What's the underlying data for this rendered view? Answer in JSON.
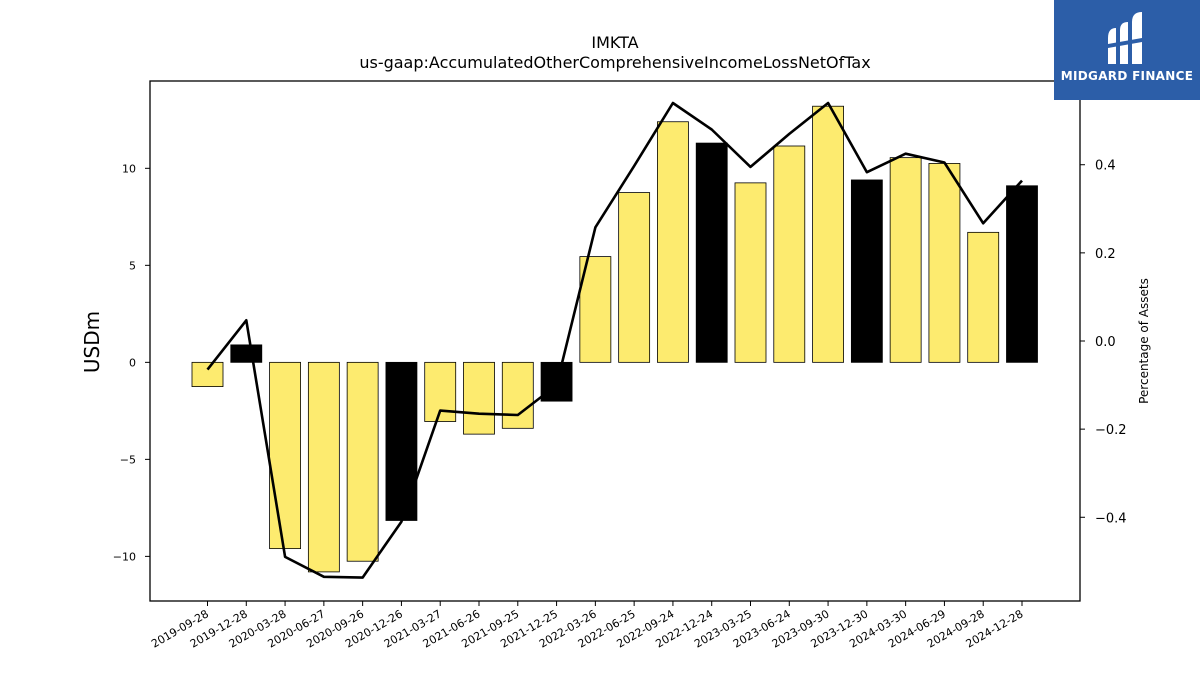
{
  "chart_data": {
    "type": "bar",
    "title": "IMKTA",
    "subtitle": "us-gaap:AccumulatedOtherComprehensiveIncomeLossNetOfTax",
    "ylabel": "USDm",
    "y2label": "Percentage of Assets",
    "ylim": [
      -12.3,
      14.5
    ],
    "y2lim": [
      -0.59,
      0.59
    ],
    "yticks": [
      -10,
      -5,
      0,
      5,
      10
    ],
    "y2ticks": [
      -0.4,
      -0.2,
      0.0,
      0.2,
      0.4
    ],
    "ytick_labels": [
      "−10",
      "−5",
      "0",
      "5",
      "10"
    ],
    "y2tick_labels": [
      "−0.4",
      "−0.2",
      "0.0",
      "0.2",
      "0.4"
    ],
    "categories": [
      "2019-09-28",
      "2019-12-28",
      "2020-03-28",
      "2020-06-27",
      "2020-09-26",
      "2020-12-26",
      "2021-03-27",
      "2021-06-26",
      "2021-09-25",
      "2021-12-25",
      "2022-03-26",
      "2022-06-25",
      "2022-09-24",
      "2022-12-24",
      "2023-03-25",
      "2023-06-24",
      "2023-09-30",
      "2023-12-30",
      "2024-03-30",
      "2024-06-29",
      "2024-09-28",
      "2024-12-28"
    ],
    "series": [
      {
        "type": "bar",
        "values": [
          -1.25,
          0.9,
          -9.6,
          -10.8,
          -10.25,
          -8.15,
          -3.05,
          -3.7,
          -3.4,
          -2.0,
          5.45,
          8.75,
          12.4,
          11.3,
          9.25,
          11.15,
          13.2,
          9.4,
          10.55,
          10.25,
          6.7,
          9.1
        ],
        "colors": [
          "#fdeb6f",
          "#000000",
          "#fdeb6f",
          "#fdeb6f",
          "#fdeb6f",
          "#000000",
          "#fdeb6f",
          "#fdeb6f",
          "#fdeb6f",
          "#000000",
          "#fdeb6f",
          "#fdeb6f",
          "#fdeb6f",
          "#000000",
          "#fdeb6f",
          "#fdeb6f",
          "#fdeb6f",
          "#000000",
          "#fdeb6f",
          "#fdeb6f",
          "#fdeb6f",
          "#000000"
        ]
      },
      {
        "type": "line",
        "axis": "right",
        "color": "#000000",
        "values": [
          -0.065,
          0.047,
          -0.49,
          -0.535,
          -0.537,
          -0.41,
          -0.158,
          -0.165,
          -0.168,
          -0.1,
          0.258,
          0.397,
          0.54,
          0.48,
          0.395,
          0.47,
          0.54,
          0.383,
          0.425,
          0.405,
          0.267,
          0.364
        ]
      }
    ],
    "grid": false
  },
  "logo": {
    "text": "MIDGARD FINANCE",
    "bg": "#2c5ea8"
  }
}
